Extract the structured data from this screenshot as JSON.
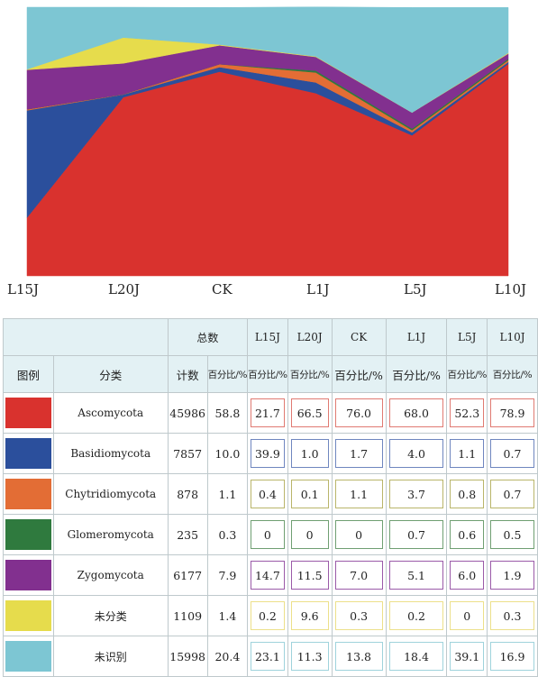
{
  "chart_data": {
    "type": "area",
    "stacked": true,
    "percent": true,
    "categories": [
      "L15J",
      "L20J",
      "CK",
      "L1J",
      "L5J",
      "L10J"
    ],
    "series": [
      {
        "name": "Ascomycota",
        "color": "#d9322e",
        "values": [
          21.7,
          66.5,
          76.0,
          68.0,
          52.3,
          78.9
        ]
      },
      {
        "name": "Basidiomycota",
        "color": "#2b4f9c",
        "values": [
          39.9,
          1.0,
          1.7,
          4.0,
          1.1,
          0.7
        ]
      },
      {
        "name": "Chytridiomycota",
        "color": "#e36d35",
        "values": [
          0.4,
          0.1,
          1.1,
          3.7,
          0.8,
          0.7
        ]
      },
      {
        "name": "Glomeromycota",
        "color": "#2f7a3e",
        "values": [
          0,
          0,
          0,
          0.7,
          0.6,
          0.5
        ]
      },
      {
        "name": "Zygomycota",
        "color": "#82308f",
        "values": [
          14.7,
          11.5,
          7.0,
          5.1,
          6.0,
          1.9
        ]
      },
      {
        "name": "未分类",
        "color": "#e6dc4c",
        "values": [
          0.2,
          9.6,
          0.3,
          0.2,
          0,
          0.3
        ]
      },
      {
        "name": "未识别",
        "color": "#7dc6d3",
        "values": [
          23.1,
          11.3,
          13.8,
          18.4,
          39.1,
          16.9
        ]
      }
    ],
    "ylim": [
      0,
      100
    ]
  },
  "table": {
    "header_total": "总数",
    "header_legend": "图例",
    "header_class": "分类",
    "header_count": "计数",
    "pct_label": "百分比/%",
    "rows": [
      {
        "name": "Ascomycota",
        "count": "45986",
        "total_pct": "58.8",
        "values": [
          "21.7",
          "66.5",
          "76.0",
          "68.0",
          "52.3",
          "78.9"
        ]
      },
      {
        "name": "Basidiomycota",
        "count": "7857",
        "total_pct": "10.0",
        "values": [
          "39.9",
          "1.0",
          "1.7",
          "4.0",
          "1.1",
          "0.7"
        ]
      },
      {
        "name": "Chytridiomycota",
        "count": "878",
        "total_pct": "1.1",
        "values": [
          "0.4",
          "0.1",
          "1.1",
          "3.7",
          "0.8",
          "0.7"
        ]
      },
      {
        "name": "Glomeromycota",
        "count": "235",
        "total_pct": "0.3",
        "values": [
          "0",
          "0",
          "0",
          "0.7",
          "0.6",
          "0.5"
        ]
      },
      {
        "name": "Zygomycota",
        "count": "6177",
        "total_pct": "7.9",
        "values": [
          "14.7",
          "11.5",
          "7.0",
          "5.1",
          "6.0",
          "1.9"
        ]
      },
      {
        "name": "未分类",
        "count": "1109",
        "total_pct": "1.4",
        "values": [
          "0.2",
          "9.6",
          "0.3",
          "0.2",
          "0",
          "0.3"
        ]
      },
      {
        "name": "未识别",
        "count": "15998",
        "total_pct": "20.4",
        "values": [
          "23.1",
          "11.3",
          "13.8",
          "18.4",
          "39.1",
          "16.9"
        ]
      }
    ],
    "border_colors": [
      "#e07a72",
      "#6f86bf",
      "#b9b56a",
      "#6f9f72",
      "#9a5aa8",
      "#ece08a",
      "#9fd3dc"
    ]
  }
}
